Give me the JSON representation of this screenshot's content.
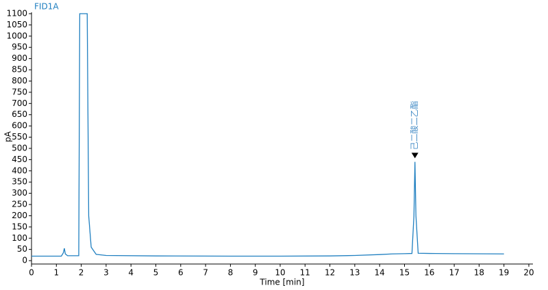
{
  "chart_data": {
    "type": "line",
    "title": "FID1A",
    "xlabel": "Time [min]",
    "ylabel": "pA",
    "x": [
      0,
      1.2,
      1.28,
      1.32,
      1.36,
      1.45,
      1.9,
      1.94,
      1.97,
      2.2,
      2.24,
      2.3,
      2.4,
      2.6,
      3,
      5,
      8,
      10,
      12,
      13,
      14,
      14.5,
      15,
      15.3,
      15.38,
      15.42,
      15.46,
      15.55,
      16,
      17,
      19
    ],
    "values": [
      20,
      20,
      35,
      55,
      30,
      22,
      22,
      1100,
      1100,
      1100,
      1100,
      200,
      60,
      28,
      23,
      21,
      20,
      20,
      21,
      23,
      27,
      30,
      31,
      32,
      200,
      440,
      200,
      33,
      32,
      31,
      30
    ],
    "color": "#1f7fc0",
    "xlim": [
      0,
      20
    ],
    "xticks": [
      0,
      1,
      2,
      3,
      4,
      5,
      6,
      7,
      8,
      9,
      10,
      11,
      12,
      13,
      14,
      15,
      16,
      17,
      18,
      19,
      20
    ],
    "ylim": [
      -15,
      1100
    ],
    "yticks": [
      0,
      50,
      100,
      150,
      200,
      250,
      300,
      350,
      400,
      450,
      500,
      550,
      600,
      650,
      700,
      750,
      800,
      850,
      900,
      950,
      1000,
      1050,
      1100
    ],
    "annotations": [
      {
        "text": "己二酸二乙酯",
        "x": 15.42,
        "y": 450
      }
    ]
  }
}
